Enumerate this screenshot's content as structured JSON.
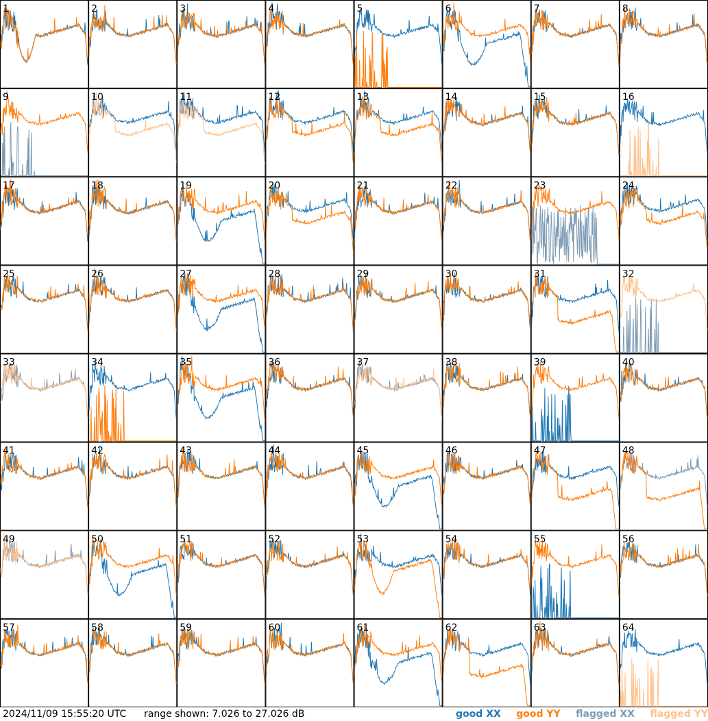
{
  "footer": {
    "timestamp": "2024/11/09 15:55:20 UTC",
    "range_prefix": "range shown: ",
    "range_low": "7.026",
    "range_mid": " to ",
    "range_high": "27.026",
    "range_unit": " dB"
  },
  "legend": [
    {
      "label": "good XX",
      "color": "#1f77b4"
    },
    {
      "label": "good YY",
      "color": "#ff7f0e"
    },
    {
      "label": "flagged XX",
      "color": "#7f9bb4"
    },
    {
      "label": "flagged YY",
      "color": "#ffc08a"
    }
  ],
  "chart_data": {
    "type": "line",
    "grid": {
      "rows": 8,
      "cols": 8
    },
    "ylim_db": [
      7.026,
      27.026
    ],
    "series_names": [
      "good XX",
      "good YY",
      "flagged XX",
      "flagged YY"
    ],
    "panels": [
      {
        "label": "1",
        "xx": "good",
        "yy": "good",
        "shape": "weird_drop"
      },
      {
        "label": "2",
        "xx": "good",
        "yy": "good",
        "shape": "normal"
      },
      {
        "label": "3",
        "xx": "good",
        "yy": "good",
        "shape": "normal"
      },
      {
        "label": "4",
        "xx": "good",
        "yy": "good",
        "shape": "normal"
      },
      {
        "label": "5",
        "xx": "good",
        "yy": "good",
        "shape": "xx_only"
      },
      {
        "label": "6",
        "xx": "good",
        "yy": "good",
        "shape": "xx_dip"
      },
      {
        "label": "7",
        "xx": "good",
        "yy": "good",
        "shape": "normal"
      },
      {
        "label": "8",
        "xx": "good",
        "yy": "good",
        "shape": "normal"
      },
      {
        "label": "9",
        "xx": "flagged",
        "yy": "good",
        "shape": "xx_dead"
      },
      {
        "label": "10",
        "xx": "good",
        "yy": "flagged",
        "shape": "split"
      },
      {
        "label": "11",
        "xx": "good",
        "yy": "flagged",
        "shape": "split"
      },
      {
        "label": "12",
        "xx": "good",
        "yy": "good",
        "shape": "split"
      },
      {
        "label": "13",
        "xx": "good",
        "yy": "good",
        "shape": "split"
      },
      {
        "label": "14",
        "xx": "good",
        "yy": "good",
        "shape": "normal"
      },
      {
        "label": "15",
        "xx": "good",
        "yy": "good",
        "shape": "normal"
      },
      {
        "label": "16",
        "xx": "good",
        "yy": "flagged",
        "shape": "xx_only"
      },
      {
        "label": "17",
        "xx": "good",
        "yy": "good",
        "shape": "normal"
      },
      {
        "label": "18",
        "xx": "good",
        "yy": "good",
        "shape": "normal"
      },
      {
        "label": "19",
        "xx": "good",
        "yy": "good",
        "shape": "xx_dip"
      },
      {
        "label": "20",
        "xx": "good",
        "yy": "good",
        "shape": "split"
      },
      {
        "label": "21",
        "xx": "good",
        "yy": "good",
        "shape": "normal"
      },
      {
        "label": "22",
        "xx": "good",
        "yy": "good",
        "shape": "normal"
      },
      {
        "label": "23",
        "xx": "flagged",
        "yy": "good",
        "shape": "xx_noisy"
      },
      {
        "label": "24",
        "xx": "good",
        "yy": "good",
        "shape": "split"
      },
      {
        "label": "25",
        "xx": "good",
        "yy": "good",
        "shape": "normal"
      },
      {
        "label": "26",
        "xx": "good",
        "yy": "good",
        "shape": "normal"
      },
      {
        "label": "27",
        "xx": "good",
        "yy": "good",
        "shape": "xx_dip"
      },
      {
        "label": "28",
        "xx": "good",
        "yy": "good",
        "shape": "normal"
      },
      {
        "label": "29",
        "xx": "good",
        "yy": "good",
        "shape": "normal"
      },
      {
        "label": "30",
        "xx": "good",
        "yy": "good",
        "shape": "normal"
      },
      {
        "label": "31",
        "xx": "good",
        "yy": "good",
        "shape": "yy_low"
      },
      {
        "label": "32",
        "xx": "flagged",
        "yy": "flagged",
        "shape": "yy_only_flag"
      },
      {
        "label": "33",
        "xx": "flagged",
        "yy": "flagged",
        "shape": "normal"
      },
      {
        "label": "34",
        "xx": "good",
        "yy": "good",
        "shape": "yy_dead"
      },
      {
        "label": "35",
        "xx": "good",
        "yy": "good",
        "shape": "xx_dip"
      },
      {
        "label": "36",
        "xx": "good",
        "yy": "good",
        "shape": "normal"
      },
      {
        "label": "37",
        "xx": "flagged",
        "yy": "flagged",
        "shape": "normal"
      },
      {
        "label": "38",
        "xx": "good",
        "yy": "good",
        "shape": "normal"
      },
      {
        "label": "39",
        "xx": "good",
        "yy": "good",
        "shape": "xx_dead"
      },
      {
        "label": "40",
        "xx": "good",
        "yy": "good",
        "shape": "normal"
      },
      {
        "label": "41",
        "xx": "good",
        "yy": "good",
        "shape": "normal"
      },
      {
        "label": "42",
        "xx": "good",
        "yy": "good",
        "shape": "normal"
      },
      {
        "label": "43",
        "xx": "good",
        "yy": "good",
        "shape": "normal"
      },
      {
        "label": "44",
        "xx": "good",
        "yy": "good",
        "shape": "normal"
      },
      {
        "label": "45",
        "xx": "good",
        "yy": "good",
        "shape": "xx_dip"
      },
      {
        "label": "46",
        "xx": "good",
        "yy": "good",
        "shape": "normal"
      },
      {
        "label": "47",
        "xx": "good",
        "yy": "good",
        "shape": "yy_low"
      },
      {
        "label": "48",
        "xx": "flagged",
        "yy": "good",
        "shape": "yy_low"
      },
      {
        "label": "49",
        "xx": "flagged",
        "yy": "flagged",
        "shape": "normal"
      },
      {
        "label": "50",
        "xx": "good",
        "yy": "good",
        "shape": "xx_dip"
      },
      {
        "label": "51",
        "xx": "good",
        "yy": "good",
        "shape": "normal"
      },
      {
        "label": "52",
        "xx": "good",
        "yy": "good",
        "shape": "normal"
      },
      {
        "label": "53",
        "xx": "good",
        "yy": "good",
        "shape": "yy_dip"
      },
      {
        "label": "54",
        "xx": "good",
        "yy": "good",
        "shape": "normal"
      },
      {
        "label": "55",
        "xx": "good",
        "yy": "good",
        "shape": "xx_dead"
      },
      {
        "label": "56",
        "xx": "good",
        "yy": "good",
        "shape": "normal"
      },
      {
        "label": "57",
        "xx": "good",
        "yy": "good",
        "shape": "normal"
      },
      {
        "label": "58",
        "xx": "good",
        "yy": "good",
        "shape": "normal"
      },
      {
        "label": "59",
        "xx": "good",
        "yy": "good",
        "shape": "normal"
      },
      {
        "label": "60",
        "xx": "good",
        "yy": "good",
        "shape": "normal"
      },
      {
        "label": "61",
        "xx": "good",
        "yy": "good",
        "shape": "xx_dip"
      },
      {
        "label": "62",
        "xx": "good",
        "yy": "good",
        "shape": "yy_low"
      },
      {
        "label": "63",
        "xx": "good",
        "yy": "good",
        "shape": "normal"
      },
      {
        "label": "64",
        "xx": "good",
        "yy": "flagged",
        "shape": "xx_only"
      }
    ]
  }
}
